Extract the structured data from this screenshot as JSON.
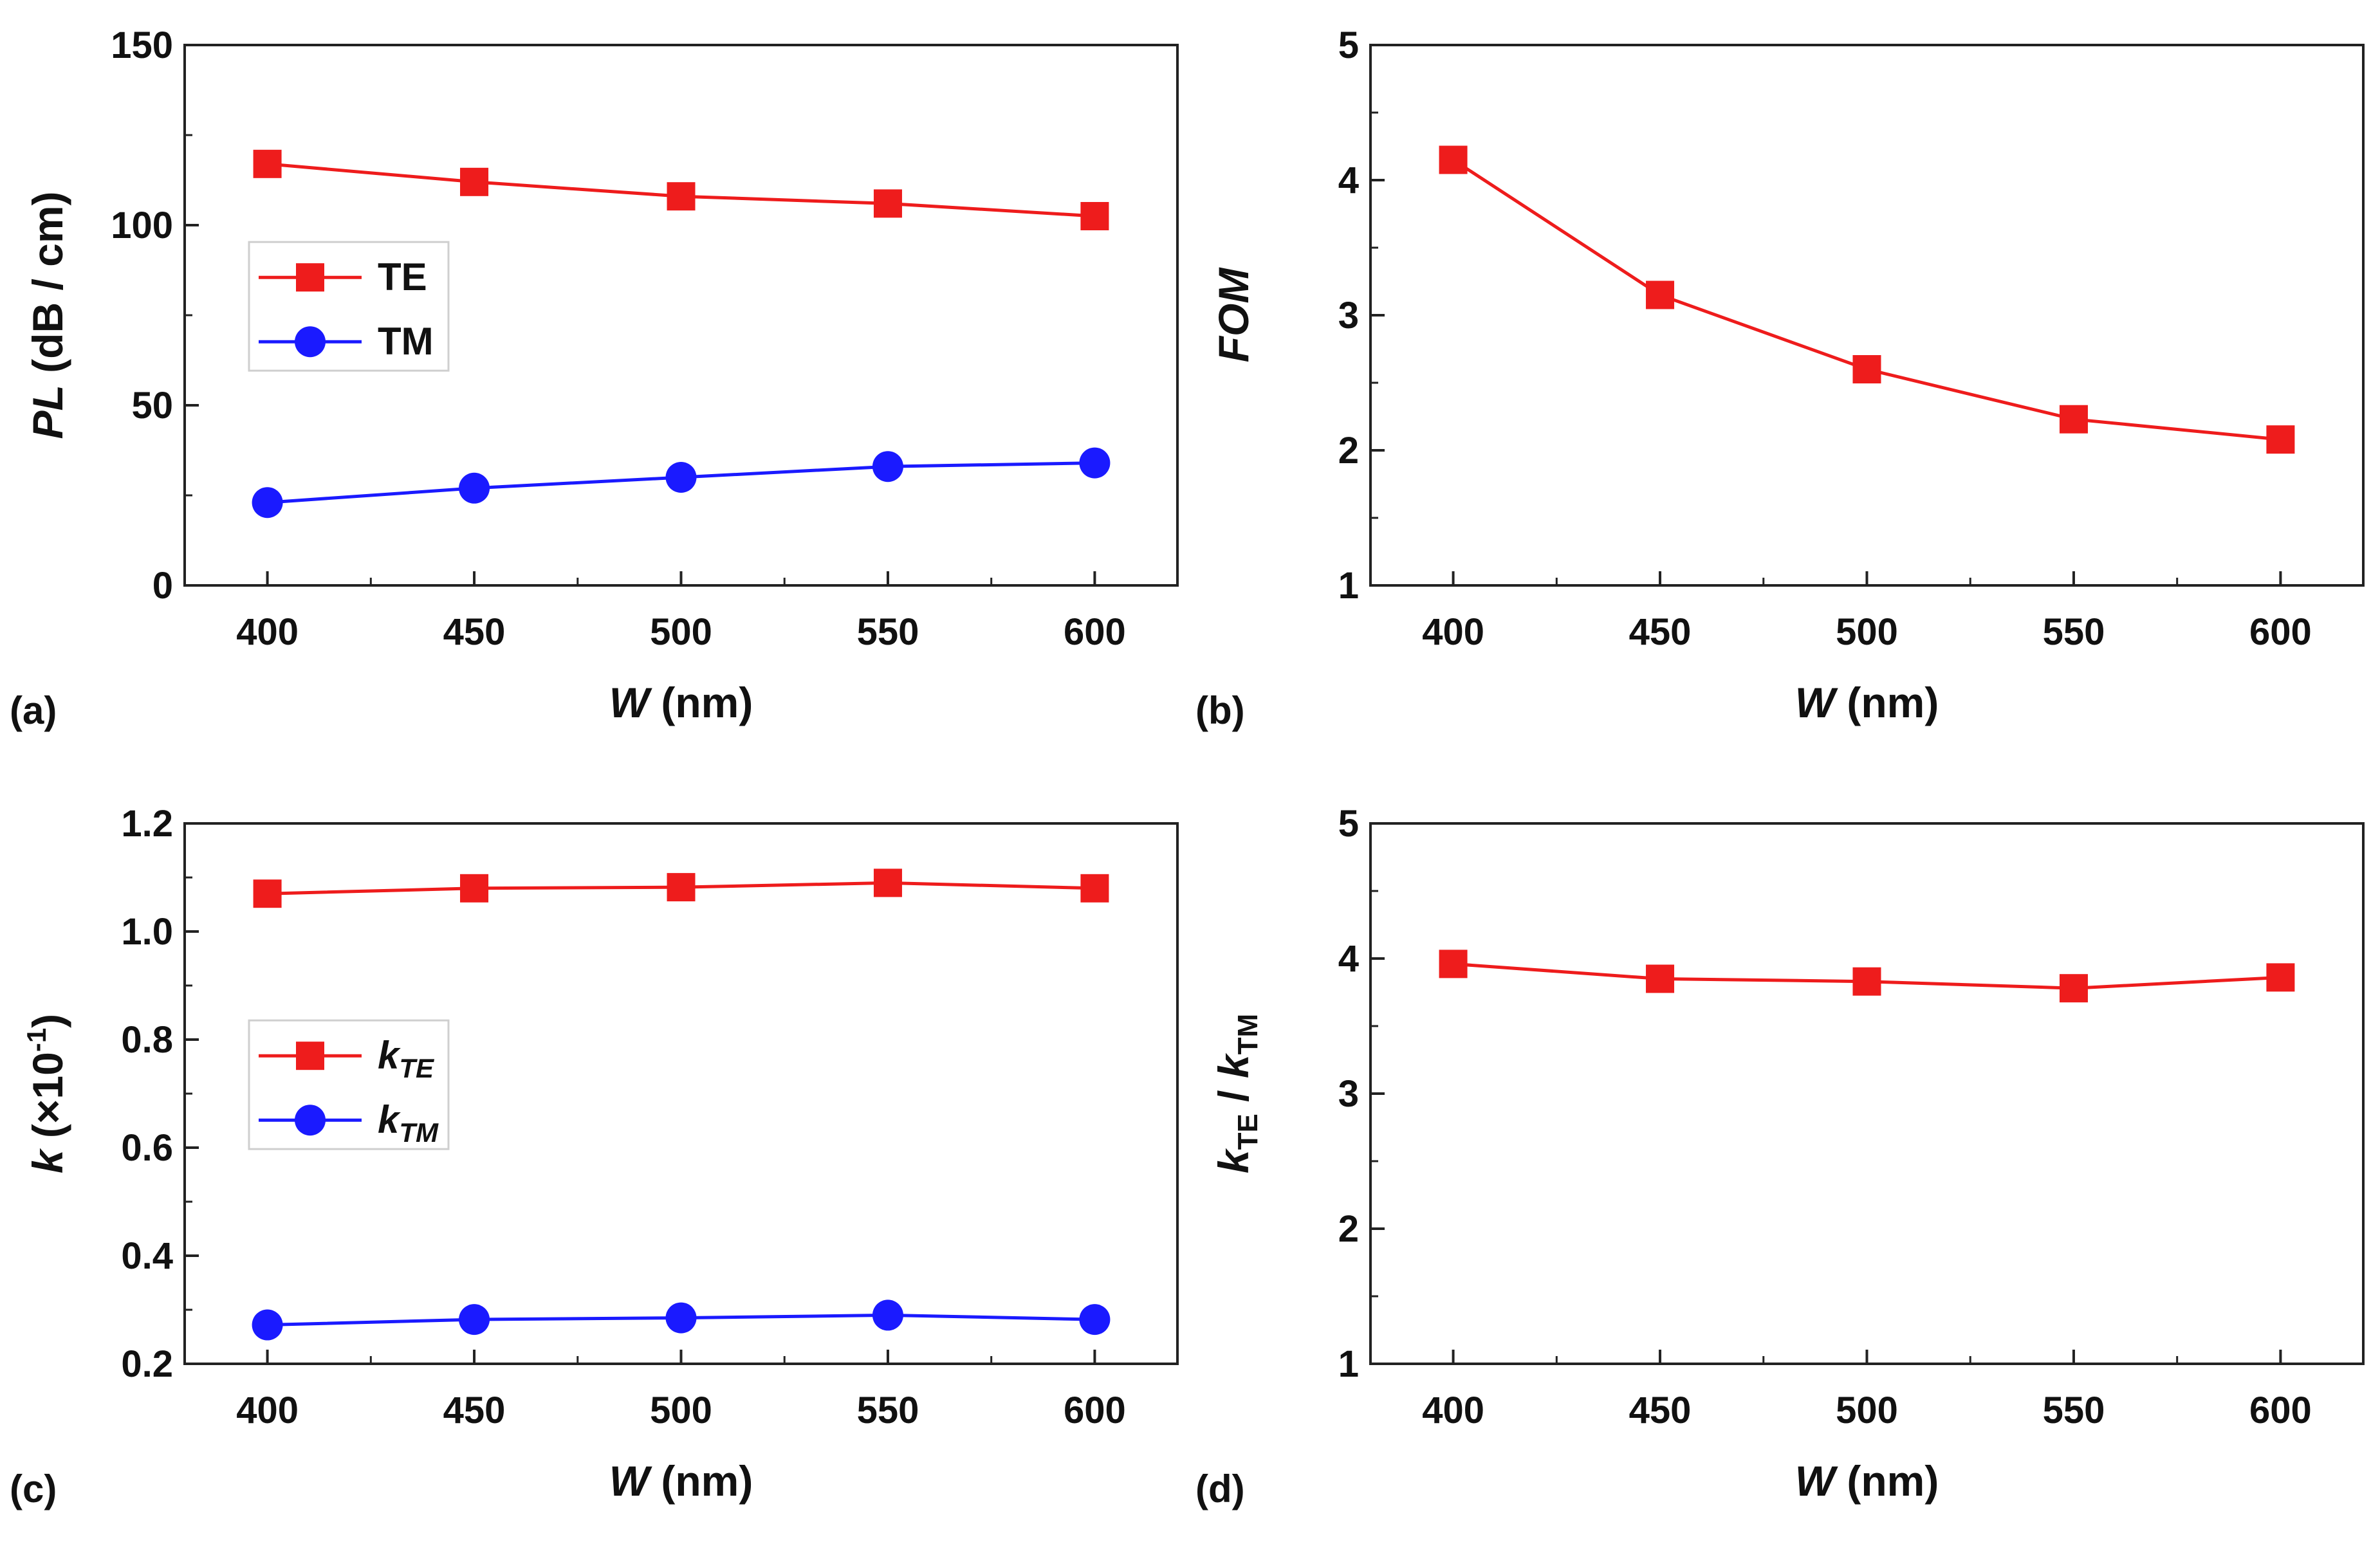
{
  "chart_data": [
    {
      "panel": "(a)",
      "type": "line",
      "xlabel": {
        "main": "W",
        "unit": " (nm)"
      },
      "ylabel": {
        "main": "PL",
        "unit": " (dB / cm)"
      },
      "x": [
        400,
        450,
        500,
        550,
        600
      ],
      "xlim": [
        380,
        600
      ],
      "ylim": [
        0,
        150
      ],
      "xticks": [
        "400",
        "450",
        "500",
        "550",
        "600"
      ],
      "yticks": [
        "0",
        "50",
        "100",
        "150"
      ],
      "legend_position": "middle-left",
      "series": [
        {
          "name": "TE",
          "marker": "square",
          "color": "#ee1c1c",
          "values": [
            117,
            112,
            108,
            106,
            102.5
          ]
        },
        {
          "name": "TM",
          "marker": "circle",
          "color": "#1a1aff",
          "values": [
            23,
            27,
            30,
            33,
            34
          ]
        }
      ]
    },
    {
      "panel": "(b)",
      "type": "line",
      "xlabel": {
        "main": "W",
        "unit": " (nm)"
      },
      "ylabel": {
        "main": "FOM",
        "unit": ""
      },
      "x": [
        400,
        450,
        500,
        550,
        600
      ],
      "ylim": [
        1,
        5
      ],
      "xticks": [
        "400",
        "450",
        "500",
        "550",
        "600"
      ],
      "yticks": [
        "1",
        "2",
        "3",
        "4",
        "5"
      ],
      "series": [
        {
          "marker": "square",
          "color": "#ee1c1c",
          "values": [
            4.15,
            3.15,
            2.6,
            2.23,
            2.08
          ]
        }
      ]
    },
    {
      "panel": "(c)",
      "type": "line",
      "xlabel": {
        "main": "W",
        "unit": " (nm)"
      },
      "ylabel": {
        "main": "k",
        "unit": " (×10",
        "sup": "-1",
        "close": ")"
      },
      "x": [
        400,
        450,
        500,
        550,
        600
      ],
      "ylim": [
        0.2,
        1.2
      ],
      "xticks": [
        "400",
        "450",
        "500",
        "550",
        "600"
      ],
      "yticks": [
        "0.2",
        "0.4",
        "0.6",
        "0.8",
        "1.0",
        "1.2"
      ],
      "legend_position": "middle-left",
      "series": [
        {
          "name": "k",
          "sub": "TE",
          "marker": "square",
          "color": "#ee1c1c",
          "values": [
            1.07,
            1.08,
            1.082,
            1.09,
            1.08
          ]
        },
        {
          "name": "k",
          "sub": "TM",
          "marker": "circle",
          "color": "#1a1aff",
          "values": [
            0.272,
            0.282,
            0.285,
            0.29,
            0.282
          ]
        }
      ]
    },
    {
      "panel": "(d)",
      "type": "line",
      "xlabel": {
        "main": "W",
        "unit": " (nm)"
      },
      "ylabel": {
        "main": "k",
        "sub1": "TE",
        "mid": " / ",
        "main2": "k",
        "sub2": "TM"
      },
      "x": [
        400,
        450,
        500,
        550,
        600
      ],
      "ylim": [
        1,
        5
      ],
      "xticks": [
        "400",
        "450",
        "500",
        "550",
        "600"
      ],
      "yticks": [
        "1",
        "2",
        "3",
        "4",
        "5"
      ],
      "series": [
        {
          "marker": "square",
          "color": "#ee1c1c",
          "values": [
            3.96,
            3.85,
            3.83,
            3.78,
            3.86
          ]
        }
      ]
    }
  ]
}
